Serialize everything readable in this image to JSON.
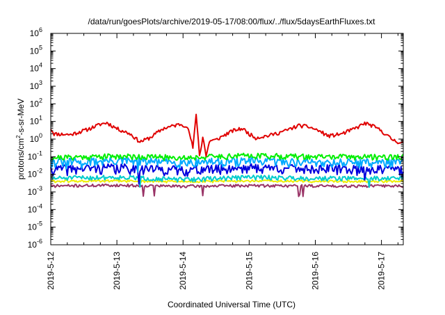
{
  "chart_data": {
    "type": "line",
    "title": "/data/run/goesPlots/archive/2019-05-17/08:00/flux/../flux/5daysEarthFluxes.txt",
    "xlabel": "Coordinated Universal Time (UTC)",
    "ylabel": {
      "prefix": "protons/cm",
      "sup": "2",
      "suffix": "-s-sr-MeV"
    },
    "y_scale": "log",
    "ylim": [
      1e-06,
      1000000.0
    ],
    "y_ticks": [
      {
        "value": 1e-06,
        "base": "10",
        "exp": "-6"
      },
      {
        "value": 1e-05,
        "base": "10",
        "exp": "-5"
      },
      {
        "value": 0.0001,
        "base": "10",
        "exp": "-4"
      },
      {
        "value": 0.001,
        "base": "10",
        "exp": "-3"
      },
      {
        "value": 0.01,
        "base": "10",
        "exp": "-2"
      },
      {
        "value": 0.1,
        "base": "10",
        "exp": "-1"
      },
      {
        "value": 1,
        "base": "10",
        "exp": "0"
      },
      {
        "value": 10,
        "base": "10",
        "exp": "1"
      },
      {
        "value": 100,
        "base": "10",
        "exp": "2"
      },
      {
        "value": 1000,
        "base": "10",
        "exp": "3"
      },
      {
        "value": 10000,
        "base": "10",
        "exp": "4"
      },
      {
        "value": 100000,
        "base": "10",
        "exp": "5"
      },
      {
        "value": 1000000,
        "base": "10",
        "exp": "6"
      }
    ],
    "x_range_days": [
      0,
      5.33
    ],
    "x_ticks": [
      {
        "day": 0,
        "label": "2019-5-12"
      },
      {
        "day": 1,
        "label": "2019-5-13"
      },
      {
        "day": 2,
        "label": "2019-5-14"
      },
      {
        "day": 3,
        "label": "2019-5-15"
      },
      {
        "day": 4,
        "label": "2019-5-16"
      },
      {
        "day": 5,
        "label": "2019-5-17"
      }
    ],
    "grid": false,
    "series": [
      {
        "color": "#e00000",
        "base_points": [
          [
            0,
            4.0
          ],
          [
            0.05,
            2.0
          ],
          [
            0.3,
            1.8
          ],
          [
            0.55,
            3.5
          ],
          [
            0.75,
            7
          ],
          [
            0.85,
            8.5
          ],
          [
            1.0,
            4.0
          ],
          [
            1.2,
            2.0
          ],
          [
            1.35,
            0.7
          ],
          [
            1.5,
            1.2
          ],
          [
            1.7,
            4
          ],
          [
            1.95,
            7
          ],
          [
            2.05,
            6
          ],
          [
            2.1,
            2.0
          ],
          [
            2.15,
            0.3
          ],
          [
            2.2,
            30
          ],
          [
            2.25,
            0.1
          ],
          [
            2.3,
            1.5
          ],
          [
            2.35,
            0.1
          ],
          [
            2.4,
            0.8
          ],
          [
            2.5,
            0.9
          ],
          [
            2.6,
            1.5
          ],
          [
            2.75,
            3
          ],
          [
            2.9,
            4
          ],
          [
            3.0,
            2.0
          ],
          [
            3.1,
            1.2
          ],
          [
            3.3,
            1.6
          ],
          [
            3.55,
            3
          ],
          [
            3.75,
            6
          ],
          [
            3.9,
            5
          ],
          [
            4.05,
            3
          ],
          [
            4.2,
            1.5
          ],
          [
            4.4,
            2.0
          ],
          [
            4.6,
            4
          ],
          [
            4.75,
            8
          ],
          [
            4.85,
            6
          ],
          [
            5.0,
            3
          ],
          [
            5.15,
            1.0
          ],
          [
            5.25,
            0.7
          ],
          [
            5.33,
            0.6
          ]
        ],
        "noise": 0.08,
        "spikes": 0,
        "seed": 11
      },
      {
        "color": "#00ee00",
        "base_points": [
          [
            0,
            0.09
          ],
          [
            1,
            0.11
          ],
          [
            2,
            0.09
          ],
          [
            3,
            0.12
          ],
          [
            4,
            0.1
          ],
          [
            5,
            0.1
          ],
          [
            5.33,
            0.1
          ]
        ],
        "noise": 0.12,
        "spikes": 0,
        "seed": 21
      },
      {
        "color": "#00aaff",
        "base_points": [
          [
            0,
            0.05
          ],
          [
            1,
            0.06
          ],
          [
            2,
            0.05
          ],
          [
            3,
            0.06
          ],
          [
            4,
            0.05
          ],
          [
            5,
            0.05
          ],
          [
            5.33,
            0.05
          ]
        ],
        "noise": 0.18,
        "spikes": 3,
        "seed": 31
      },
      {
        "color": "#0000dd",
        "base_points": [
          [
            0,
            0.02
          ],
          [
            1,
            0.025
          ],
          [
            2,
            0.018
          ],
          [
            3,
            0.025
          ],
          [
            4,
            0.022
          ],
          [
            5,
            0.02
          ],
          [
            5.33,
            0.02
          ]
        ],
        "noise": 0.2,
        "spikes": 4,
        "seed": 41
      },
      {
        "color": "#00cccc",
        "base_points": [
          [
            0,
            0.006
          ],
          [
            1,
            0.007
          ],
          [
            2,
            0.005
          ],
          [
            3,
            0.007
          ],
          [
            4,
            0.006
          ],
          [
            5,
            0.006
          ],
          [
            5.33,
            0.006
          ]
        ],
        "noise": 0.1,
        "spikes": 2,
        "seed": 51
      },
      {
        "color": "#eeee00",
        "base_points": [
          [
            0,
            0.004
          ],
          [
            1,
            0.0042
          ],
          [
            2,
            0.0038
          ],
          [
            3,
            0.0042
          ],
          [
            4,
            0.004
          ],
          [
            5,
            0.004
          ],
          [
            5.33,
            0.004
          ]
        ],
        "noise": 0.05,
        "spikes": 0,
        "seed": 61
      },
      {
        "color": "#993366",
        "base_points": [
          [
            0,
            0.0022
          ],
          [
            1,
            0.0024
          ],
          [
            2,
            0.0021
          ],
          [
            3,
            0.0023
          ],
          [
            4,
            0.0022
          ],
          [
            5,
            0.0022
          ],
          [
            5.33,
            0.0022
          ]
        ],
        "noise": 0.06,
        "spikes": 6,
        "seed": 71
      }
    ]
  }
}
